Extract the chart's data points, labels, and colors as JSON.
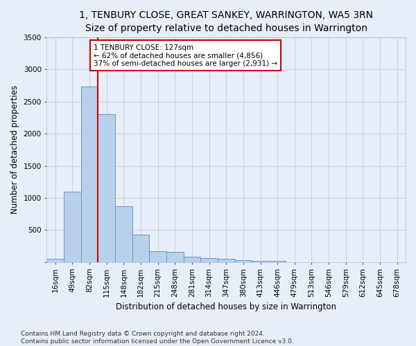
{
  "title": "1, TENBURY CLOSE, GREAT SANKEY, WARRINGTON, WA5 3RN",
  "subtitle": "Size of property relative to detached houses in Warrington",
  "xlabel": "Distribution of detached houses by size in Warrington",
  "ylabel": "Number of detached properties",
  "categories": [
    "16sqm",
    "49sqm",
    "82sqm",
    "115sqm",
    "148sqm",
    "182sqm",
    "215sqm",
    "248sqm",
    "281sqm",
    "314sqm",
    "347sqm",
    "380sqm",
    "413sqm",
    "446sqm",
    "479sqm",
    "513sqm",
    "546sqm",
    "579sqm",
    "612sqm",
    "645sqm",
    "678sqm"
  ],
  "values": [
    50,
    1100,
    2730,
    2300,
    870,
    430,
    170,
    165,
    90,
    60,
    50,
    35,
    25,
    20,
    0,
    0,
    0,
    0,
    0,
    0,
    0
  ],
  "bar_color": "#b8d0ea",
  "bar_edge_color": "#6699cc",
  "background_color": "#e8eef8",
  "grid_color": "#d0d8e8",
  "vline_color": "#cc0000",
  "annotation_text": "1 TENBURY CLOSE: 127sqm\n← 62% of detached houses are smaller (4,856)\n37% of semi-detached houses are larger (2,931) →",
  "annotation_box_color": "white",
  "annotation_box_edge": "#cc0000",
  "ylim": [
    0,
    3500
  ],
  "yticks": [
    0,
    500,
    1000,
    1500,
    2000,
    2500,
    3000,
    3500
  ],
  "footer": "Contains HM Land Registry data © Crown copyright and database right 2024.\nContains public sector information licensed under the Open Government Licence v3.0.",
  "title_fontsize": 10,
  "xlabel_fontsize": 8.5,
  "ylabel_fontsize": 8.5,
  "annotation_fontsize": 7.5,
  "footer_fontsize": 6.5,
  "tick_fontsize": 7.5
}
